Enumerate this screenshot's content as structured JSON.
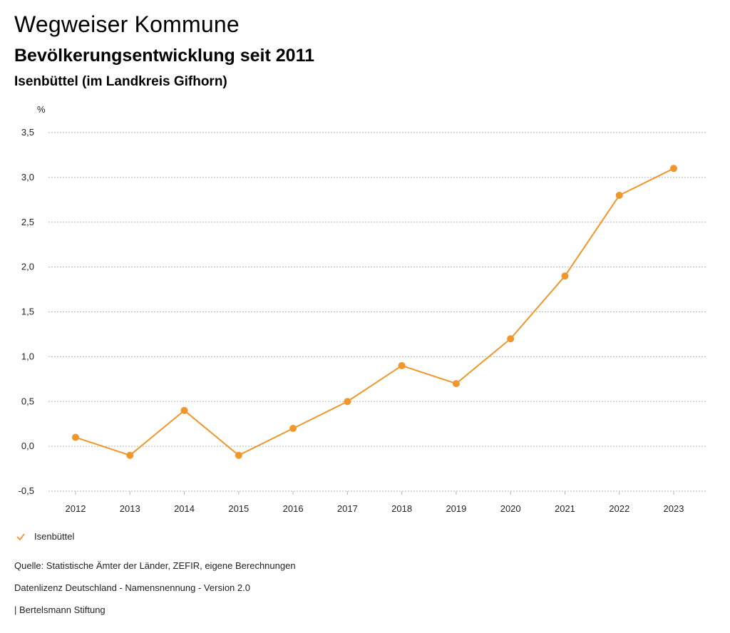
{
  "header": {
    "title": "Wegweiser Kommune",
    "subtitle": "Bevölkerungsentwicklung seit 2011",
    "place": "Isenbüttel (im Landkreis Gifhorn)"
  },
  "chart_data": {
    "type": "line",
    "title": "Bevölkerungsentwicklung seit 2011",
    "xlabel": "",
    "ylabel": "%",
    "ylim": [
      -0.5,
      3.5
    ],
    "yticks": [
      "3,5",
      "3,0",
      "2,5",
      "2,0",
      "1,5",
      "1,0",
      "0,5",
      "0,0",
      "-0,5"
    ],
    "ytick_values": [
      3.5,
      3.0,
      2.5,
      2.0,
      1.5,
      1.0,
      0.5,
      0.0,
      -0.5
    ],
    "grid": true,
    "categories": [
      "2012",
      "2013",
      "2014",
      "2015",
      "2016",
      "2017",
      "2018",
      "2019",
      "2020",
      "2021",
      "2022",
      "2023"
    ],
    "series": [
      {
        "name": "Isenbüttel",
        "color": "#f0962a",
        "values": [
          0.1,
          -0.1,
          0.4,
          -0.1,
          0.2,
          0.5,
          0.9,
          0.7,
          1.2,
          1.9,
          2.8,
          3.1
        ]
      }
    ],
    "legend_position": "bottom-left"
  },
  "legend": {
    "label": "Isenbüttel",
    "icon": "check-icon"
  },
  "footer": {
    "source": "Quelle: Statistische Ämter der Länder, ZEFIR, eigene Berechnungen",
    "license": "Datenlizenz Deutschland - Namensnennung - Version 2.0",
    "publisher": "| Bertelsmann Stiftung"
  },
  "colors": {
    "series": "#f0962a",
    "grid": "#b5b5b5",
    "axis": "#333333"
  }
}
